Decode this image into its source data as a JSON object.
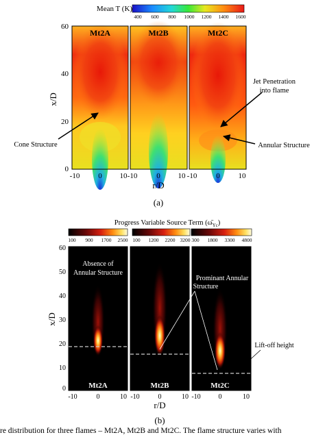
{
  "panel_a": {
    "colorbar_title": "Mean T (K)",
    "colorbar_ticks": [
      "400",
      "600",
      "800",
      "1000",
      "1200",
      "1400",
      "1600"
    ],
    "plot_titles": [
      "Mt2A",
      "Mt2B",
      "Mt2C"
    ],
    "y_ticks": [
      "0",
      "20",
      "40",
      "60"
    ],
    "x_ticks": [
      "-10",
      "0",
      "10"
    ],
    "ylabel": "x/D",
    "xlabel": "r/D",
    "annotations": {
      "cone": "Cone Structure",
      "jet_line1": "Jet Penetration",
      "jet_line2": "into flame",
      "annular": "Annular Structure"
    },
    "label": "(a)"
  },
  "panel_b": {
    "colorbar_title": "Progress Variable Source Term (ω̄",
    "colorbar_title_sub": "Yc",
    "colorbar_title_end": ")",
    "colorbars": [
      {
        "ticks": [
          "100",
          "900",
          "1700",
          "2500"
        ]
      },
      {
        "ticks": [
          "100",
          "1200",
          "2200",
          "3200"
        ]
      },
      {
        "ticks": [
          "300",
          "1800",
          "3300",
          "4800"
        ]
      }
    ],
    "plot_titles": [
      "Mt2A",
      "Mt2B",
      "Mt2C"
    ],
    "y_ticks": [
      "0",
      "10",
      "20",
      "30",
      "40",
      "50",
      "60"
    ],
    "x_ticks": [
      "-10",
      "0",
      "10"
    ],
    "ylabel": "x/D",
    "xlabel": "r/D",
    "annotations": {
      "absence_line1": "Absence of",
      "absence_line2": "Annular Structure",
      "prominant_line1": "Prominant Annular",
      "prominant_line2": "Structure",
      "liftoff": "Lift-off height"
    },
    "label": "(b)"
  },
  "caption": "re distribution for three flames – Mt2A, Mt2B and Mt2C. The flame structure varies with"
}
